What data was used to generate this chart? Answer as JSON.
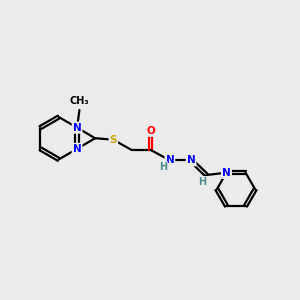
{
  "background_color": "#ebebeb",
  "bond_color": "#000000",
  "atom_colors": {
    "N": "#0000ff",
    "O": "#ff0000",
    "S": "#ccaa00",
    "H": "#4a9090",
    "C": "#000000"
  },
  "figsize": [
    3.0,
    3.0
  ],
  "dpi": 100,
  "lw": 1.6,
  "fs": 7.5
}
